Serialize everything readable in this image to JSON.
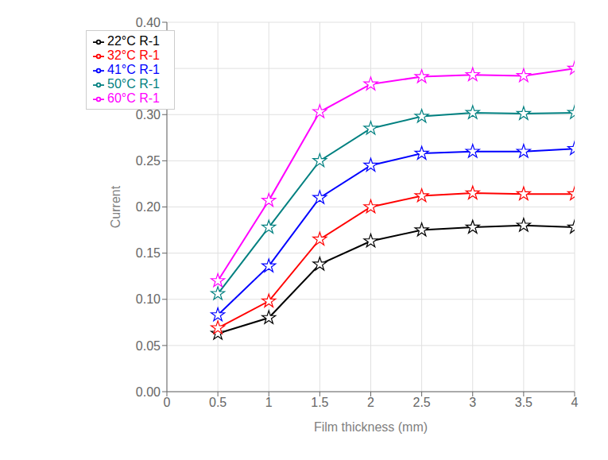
{
  "chart_data": {
    "type": "line",
    "xlabel": "Film thickness (mm)",
    "ylabel": "Current",
    "x": [
      0.5,
      1.0,
      1.5,
      2.0,
      2.5,
      3.0,
      3.5,
      4.0
    ],
    "series": [
      {
        "name": "22°C R-1",
        "color": "#000000",
        "values": [
          0.063,
          0.08,
          0.138,
          0.163,
          0.175,
          0.178,
          0.18,
          0.178
        ]
      },
      {
        "name": "32°C R-1",
        "color": "#ff0000",
        "values": [
          0.069,
          0.098,
          0.165,
          0.2,
          0.212,
          0.215,
          0.214,
          0.214
        ]
      },
      {
        "name": "41°C R-1",
        "color": "#0000ff",
        "values": [
          0.083,
          0.136,
          0.21,
          0.245,
          0.258,
          0.26,
          0.26,
          0.263
        ]
      },
      {
        "name": "50°C R-1",
        "color": "#008080",
        "values": [
          0.106,
          0.178,
          0.25,
          0.285,
          0.298,
          0.302,
          0.301,
          0.302
        ]
      },
      {
        "name": "60°C R-1",
        "color": "#ff00ff",
        "values": [
          0.12,
          0.207,
          0.303,
          0.333,
          0.341,
          0.343,
          0.342,
          0.35
        ]
      }
    ],
    "xlim": [
      0,
      4
    ],
    "ylim": [
      0,
      0.4
    ],
    "xticks": [
      0,
      0.5,
      1,
      1.5,
      2,
      2.5,
      3,
      3.5,
      4
    ],
    "yticks": [
      {
        "value": 0,
        "label": "0.00"
      },
      0.05,
      {
        "value": 0.1,
        "label": "0.10"
      },
      0.15,
      {
        "value": 0.2,
        "label": "0.20"
      },
      0.25,
      {
        "value": 0.3,
        "label": "0.30"
      },
      0.35,
      {
        "value": 0.4,
        "label": "0.40"
      }
    ],
    "grid": true,
    "legend": "upper left",
    "marker": "star"
  }
}
